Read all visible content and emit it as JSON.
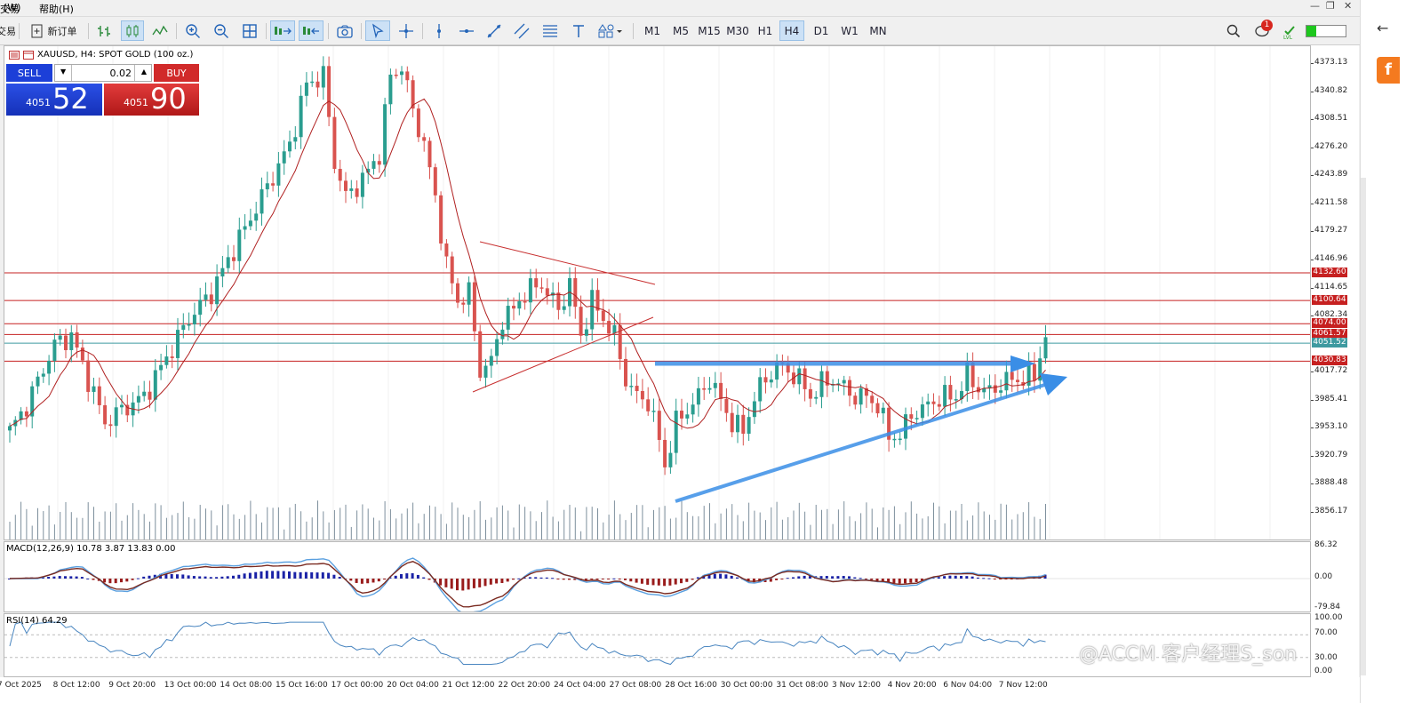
{
  "menu": {
    "left_item": "交易",
    "view": "(W)",
    "help": "帮助(H)"
  },
  "toolbar": {
    "new_order": "新订单",
    "timeframes": [
      "M1",
      "M5",
      "M15",
      "M30",
      "H1",
      "H4",
      "D1",
      "W1",
      "MN"
    ],
    "active_timeframe": "H4",
    "notification_count": "1"
  },
  "chart": {
    "title": "XAUUSD, H4:  SPOT GOLD (100 oz.)",
    "trade_panel": {
      "sell_label": "SELL",
      "buy_label": "BUY",
      "lot": "0.02",
      "sell_prefix": "4051",
      "sell_big": "52",
      "buy_prefix": "4051",
      "buy_big": "90"
    },
    "price_axis_labels": [
      "4373.13",
      "4340.82",
      "4308.51",
      "4276.20",
      "4243.89",
      "4211.58",
      "4179.27",
      "4146.96",
      "4114.65",
      "4082.34",
      "4017.72",
      "3985.41",
      "3953.10",
      "3920.79",
      "3888.48",
      "3856.17"
    ],
    "price_tags": [
      {
        "label": "4132.60",
        "color": "#c62020"
      },
      {
        "label": "4100.64",
        "color": "#c62020"
      },
      {
        "label": "4074.00",
        "color": "#c62020"
      },
      {
        "label": "4061.57",
        "color": "#c62020"
      },
      {
        "label": "4051.52",
        "color": "#3e9aa0"
      },
      {
        "label": "4030.83",
        "color": "#c62020"
      }
    ],
    "time_labels": [
      "7 Oct 2025",
      "8 Oct 12:00",
      "9 Oct 20:00",
      "13 Oct 00:00",
      "14 Oct 08:00",
      "15 Oct 16:00",
      "17 Oct 00:00",
      "20 Oct 04:00",
      "21 Oct 12:00",
      "22 Oct 20:00",
      "24 Oct 04:00",
      "27 Oct 08:00",
      "28 Oct 16:00",
      "30 Oct 00:00",
      "31 Oct 08:00",
      "3 Nov 12:00",
      "4 Nov 20:00",
      "6 Nov 04:00",
      "7 Nov 12:00"
    ]
  },
  "macd": {
    "title": "MACD(12,26,9) 10.78 3.87 13.83 0.00",
    "axis": [
      "86.32",
      "0.00",
      "-79.84"
    ]
  },
  "rsi": {
    "title": "RSI(14) 64.29",
    "axis": [
      "100.00",
      "70.00",
      "30.00",
      "0.00"
    ]
  },
  "watermark": "@ACCM 客户经理S_son",
  "colors": {
    "bull": "#2a9d8f",
    "bear": "#d9534f",
    "level": "#c62020",
    "arrow": "#3a8ee6"
  }
}
